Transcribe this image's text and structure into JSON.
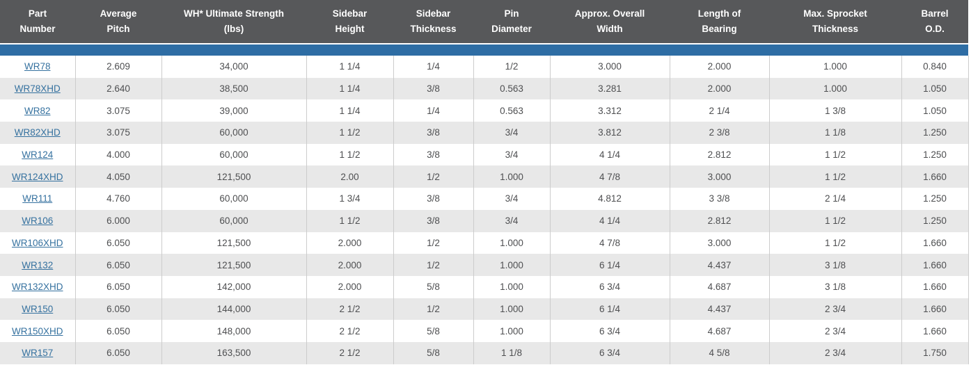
{
  "colors": {
    "header_bg": "#57585a",
    "accent_bar": "#2e6da4",
    "alt_row": "#e8e8e8",
    "link": "#35719f",
    "cell_text": "#4e4f51",
    "grid_line": "#cccccc"
  },
  "table": {
    "columns": [
      "Part\nNumber",
      "Average\nPitch",
      "WH* Ultimate Strength\n(lbs)",
      "Sidebar\nHeight",
      "Sidebar\nThickness",
      "Pin\nDiameter",
      "Approx. Overall\nWidth",
      "Length of\nBearing",
      "Max. Sprocket\nThickness",
      "Barrel\nO.D."
    ],
    "rows": [
      [
        "WR78",
        "2.609",
        "34,000",
        "1 1/4",
        "1/4",
        "1/2",
        "3.000",
        "2.000",
        "1.000",
        "0.840"
      ],
      [
        "WR78XHD",
        "2.640",
        "38,500",
        "1 1/4",
        "3/8",
        "0.563",
        "3.281",
        "2.000",
        "1.000",
        "1.050"
      ],
      [
        "WR82",
        "3.075",
        "39,000",
        "1 1/4",
        "1/4",
        "0.563",
        "3.312",
        "2 1/4",
        "1 3/8",
        "1.050"
      ],
      [
        "WR82XHD",
        "3.075",
        "60,000",
        "1 1/2",
        "3/8",
        "3/4",
        "3.812",
        "2 3/8",
        "1 1/8",
        "1.250"
      ],
      [
        "WR124",
        "4.000",
        "60,000",
        "1 1/2",
        "3/8",
        "3/4",
        "4 1/4",
        "2.812",
        "1 1/2",
        "1.250"
      ],
      [
        "WR124XHD",
        "4.050",
        "121,500",
        "2.00",
        "1/2",
        "1.000",
        "4 7/8",
        "3.000",
        "1 1/2",
        "1.660"
      ],
      [
        "WR111",
        "4.760",
        "60,000",
        "1 3/4",
        "3/8",
        "3/4",
        "4.812",
        "3 3/8",
        "2 1/4",
        "1.250"
      ],
      [
        "WR106",
        "6.000",
        "60,000",
        "1 1/2",
        "3/8",
        "3/4",
        "4 1/4",
        "2.812",
        "1 1/2",
        "1.250"
      ],
      [
        "WR106XHD",
        "6.050",
        "121,500",
        "2.000",
        "1/2",
        "1.000",
        "4 7/8",
        "3.000",
        "1 1/2",
        "1.660"
      ],
      [
        "WR132",
        "6.050",
        "121,500",
        "2.000",
        "1/2",
        "1.000",
        "6 1/4",
        "4.437",
        "3 1/8",
        "1.660"
      ],
      [
        "WR132XHD",
        "6.050",
        "142,000",
        "2.000",
        "5/8",
        "1.000",
        "6 3/4",
        "4.687",
        "3 1/8",
        "1.660"
      ],
      [
        "WR150",
        "6.050",
        "144,000",
        "2 1/2",
        "1/2",
        "1.000",
        "6 1/4",
        "4.437",
        "2 3/4",
        "1.660"
      ],
      [
        "WR150XHD",
        "6.050",
        "148,000",
        "2 1/2",
        "5/8",
        "1.000",
        "6 3/4",
        "4.687",
        "2 3/4",
        "1.660"
      ],
      [
        "WR157",
        "6.050",
        "163,500",
        "2 1/2",
        "5/8",
        "1 1/8",
        "6 3/4",
        "4 5/8",
        "2 3/4",
        "1.750"
      ]
    ]
  }
}
